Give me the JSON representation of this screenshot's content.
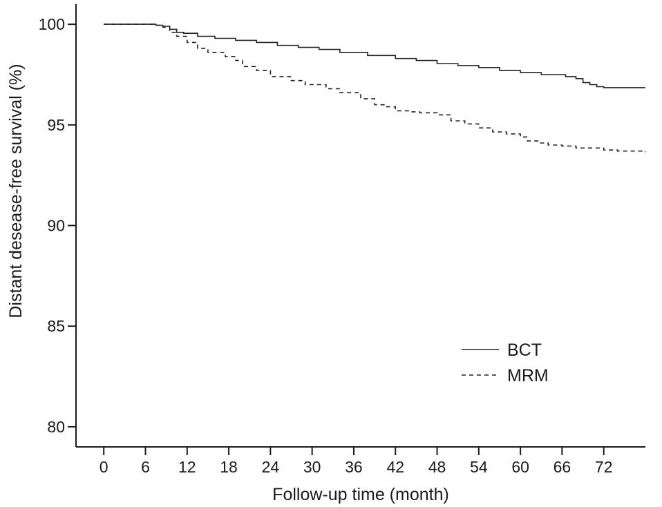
{
  "chart_data": {
    "type": "line",
    "title": "",
    "xlabel": "Follow-up time (month)",
    "ylabel": "Distant desease-free survival (%)",
    "xlim": [
      -4,
      78
    ],
    "ylim": [
      79,
      101
    ],
    "xticks": [
      0,
      6,
      12,
      18,
      24,
      30,
      36,
      42,
      48,
      54,
      60,
      66,
      72
    ],
    "yticks": [
      80,
      85,
      90,
      95,
      100
    ],
    "grid": false,
    "legend_position": "bottom-right",
    "series": [
      {
        "name": "BCT",
        "style": "solid",
        "color": "#222222",
        "points": [
          [
            0,
            100
          ],
          [
            6,
            100
          ],
          [
            7.5,
            99.95
          ],
          [
            8.5,
            99.9
          ],
          [
            9.5,
            99.75
          ],
          [
            10.5,
            99.6
          ],
          [
            11.5,
            99.55
          ],
          [
            13.5,
            99.4
          ],
          [
            16,
            99.3
          ],
          [
            19,
            99.2
          ],
          [
            22,
            99.1
          ],
          [
            25,
            98.95
          ],
          [
            28,
            98.85
          ],
          [
            31,
            98.75
          ],
          [
            34,
            98.6
          ],
          [
            38,
            98.45
          ],
          [
            42,
            98.3
          ],
          [
            45,
            98.2
          ],
          [
            48,
            98.05
          ],
          [
            51,
            97.95
          ],
          [
            54,
            97.85
          ],
          [
            57,
            97.7
          ],
          [
            60,
            97.6
          ],
          [
            63,
            97.5
          ],
          [
            66.5,
            97.4
          ],
          [
            68,
            97.3
          ],
          [
            69,
            97.1
          ],
          [
            70,
            97.0
          ],
          [
            71,
            96.9
          ],
          [
            72,
            96.85
          ],
          [
            78,
            96.85
          ]
        ]
      },
      {
        "name": "MRM",
        "style": "dashed",
        "color": "#222222",
        "points": [
          [
            0,
            100
          ],
          [
            6,
            100
          ],
          [
            7.5,
            99.95
          ],
          [
            8.5,
            99.85
          ],
          [
            9.5,
            99.6
          ],
          [
            10.5,
            99.4
          ],
          [
            12,
            99.1
          ],
          [
            13.5,
            98.8
          ],
          [
            15,
            98.6
          ],
          [
            17.5,
            98.4
          ],
          [
            19,
            98.2
          ],
          [
            20,
            97.9
          ],
          [
            22,
            97.7
          ],
          [
            24,
            97.4
          ],
          [
            27,
            97.2
          ],
          [
            29,
            97.0
          ],
          [
            32,
            96.8
          ],
          [
            34,
            96.6
          ],
          [
            37,
            96.3
          ],
          [
            39,
            96.0
          ],
          [
            40.5,
            95.9
          ],
          [
            42,
            95.7
          ],
          [
            44,
            95.65
          ],
          [
            45.5,
            95.6
          ],
          [
            48,
            95.5
          ],
          [
            50,
            95.2
          ],
          [
            52,
            95.05
          ],
          [
            54,
            94.85
          ],
          [
            56,
            94.65
          ],
          [
            58,
            94.55
          ],
          [
            60,
            94.4
          ],
          [
            61,
            94.2
          ],
          [
            62.5,
            94.1
          ],
          [
            64,
            94.0
          ],
          [
            66,
            93.95
          ],
          [
            68,
            93.85
          ],
          [
            72,
            93.75
          ],
          [
            74,
            93.7
          ],
          [
            78,
            93.65
          ]
        ]
      }
    ]
  }
}
